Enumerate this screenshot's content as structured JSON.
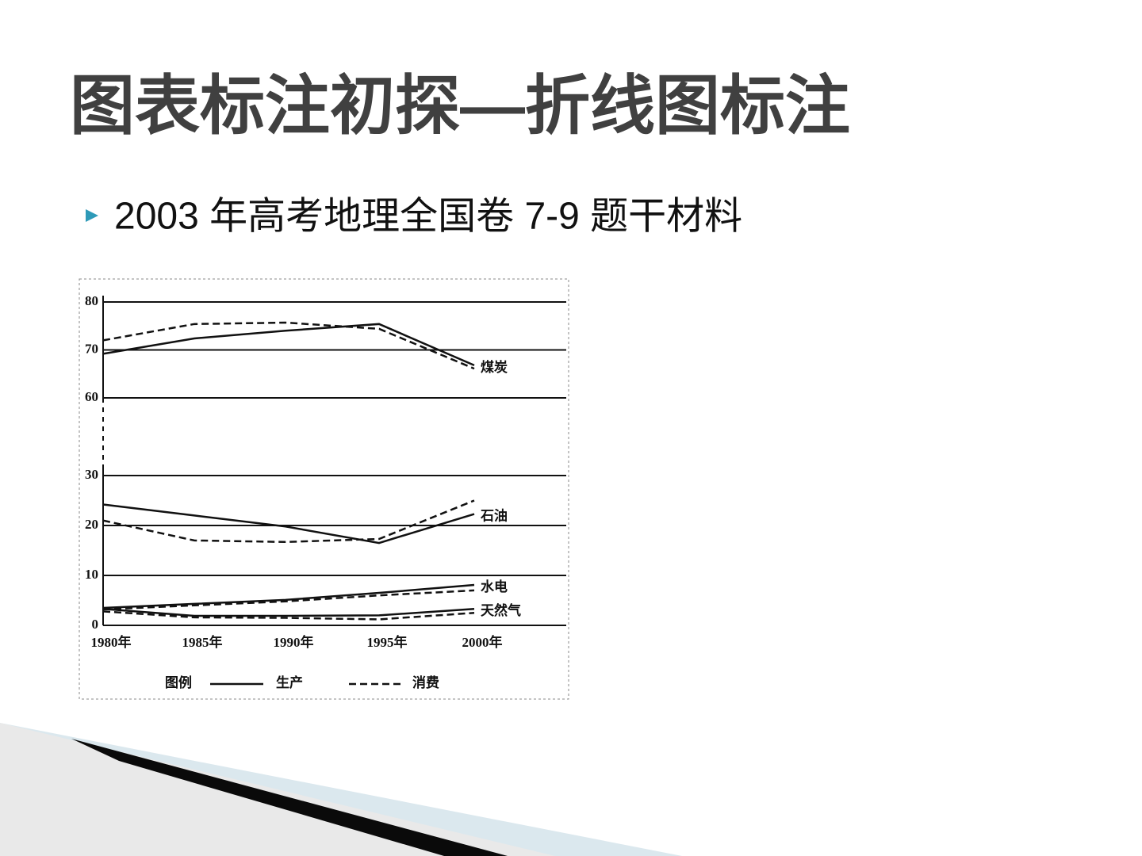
{
  "slide": {
    "title": "图表标注初探—折线图标注",
    "bullet": "2003 年高考地理全国卷 7-9 题干材料"
  },
  "chart_data": {
    "type": "line",
    "categories": [
      "1980年",
      "1985年",
      "1990年",
      "1995年",
      "2000年"
    ],
    "legend_title": "图例",
    "legend": [
      {
        "label": "生产",
        "style": "solid"
      },
      {
        "label": "消费",
        "style": "dashed"
      }
    ],
    "color": "#111111",
    "panels": [
      {
        "ylim": [
          60,
          80
        ],
        "yticks": [
          60,
          70,
          80
        ],
        "groups": [
          {
            "label": "煤炭",
            "series": [
              {
                "style": "solid",
                "values": [
                  69.2,
                  72.4,
                  74,
                  75.4,
                  66.8
                ]
              },
              {
                "style": "dashed",
                "values": [
                  72,
                  75.4,
                  75.7,
                  74.4,
                  66.1
                ]
              }
            ]
          }
        ]
      },
      {
        "ylim": [
          0,
          30
        ],
        "yticks": [
          0,
          10,
          20,
          30
        ],
        "groups": [
          {
            "label": "石油",
            "series": [
              {
                "style": "solid",
                "values": [
                  24.2,
                  22,
                  19.8,
                  16.5,
                  22.3
                ]
              },
              {
                "style": "dashed",
                "values": [
                  21,
                  17,
                  16.7,
                  17.3,
                  25
                ]
              }
            ]
          },
          {
            "label": "水电",
            "series": [
              {
                "style": "solid",
                "values": [
                  3.5,
                  4.3,
                  5.1,
                  6.5,
                  8.1
                ]
              },
              {
                "style": "dashed",
                "values": [
                  3.2,
                  4,
                  4.8,
                  6,
                  7
                ]
              }
            ]
          },
          {
            "label": "天然气",
            "series": [
              {
                "style": "solid",
                "values": [
                  3.3,
                  1.9,
                  1.9,
                  2,
                  3.3
                ]
              },
              {
                "style": "dashed",
                "values": [
                  2.8,
                  1.6,
                  1.5,
                  1.2,
                  2.5
                ]
              }
            ]
          }
        ]
      }
    ]
  }
}
